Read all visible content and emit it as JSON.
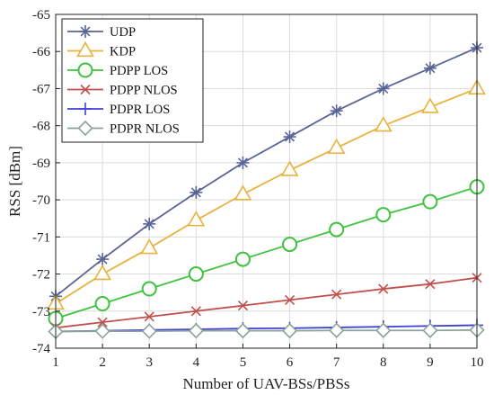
{
  "chart_data": {
    "type": "line",
    "xlabel": "Number of UAV-BSs/PBSs",
    "ylabel": "RSS [dBm]",
    "xlim": [
      1,
      10
    ],
    "ylim": [
      -74,
      -65
    ],
    "xticks": [
      1,
      2,
      3,
      4,
      5,
      6,
      7,
      8,
      9,
      10
    ],
    "yticks": [
      -74,
      -73,
      -72,
      -71,
      -70,
      -69,
      -68,
      -67,
      -66,
      -65
    ],
    "grid": true,
    "legend_position": "top-left",
    "x": [
      1,
      2,
      3,
      4,
      5,
      6,
      7,
      8,
      9,
      10
    ],
    "series": [
      {
        "name": "UDP",
        "color": "#5a6496",
        "marker": "asterisk",
        "values": [
          -72.6,
          -71.6,
          -70.65,
          -69.8,
          -69.0,
          -68.3,
          -67.6,
          -67.0,
          -66.45,
          -65.9
        ]
      },
      {
        "name": "KDP",
        "color": "#e8b23e",
        "marker": "triangle",
        "values": [
          -72.8,
          -72.0,
          -71.3,
          -70.55,
          -69.85,
          -69.2,
          -68.6,
          -68.0,
          -67.5,
          -67.0
        ]
      },
      {
        "name": "PDPP LOS",
        "color": "#3fc23f",
        "marker": "circle",
        "values": [
          -73.2,
          -72.8,
          -72.4,
          -72.0,
          -71.6,
          -71.2,
          -70.8,
          -70.4,
          -70.05,
          -69.65
        ]
      },
      {
        "name": "PDPP NLOS",
        "color": "#c0504d",
        "marker": "x",
        "values": [
          -73.45,
          -73.3,
          -73.15,
          -73.0,
          -72.85,
          -72.7,
          -72.55,
          -72.4,
          -72.27,
          -72.1
        ]
      },
      {
        "name": "PDPR LOS",
        "color": "#4040d8",
        "marker": "plus",
        "values": [
          -73.55,
          -73.53,
          -73.51,
          -73.49,
          -73.47,
          -73.46,
          -73.44,
          -73.42,
          -73.4,
          -73.38
        ]
      },
      {
        "name": "PDPR NLOS",
        "color": "#8aa39a",
        "marker": "diamond",
        "values": [
          -73.55,
          -73.54,
          -73.54,
          -73.53,
          -73.53,
          -73.53,
          -73.52,
          -73.52,
          -73.52,
          -73.51
        ]
      }
    ]
  }
}
